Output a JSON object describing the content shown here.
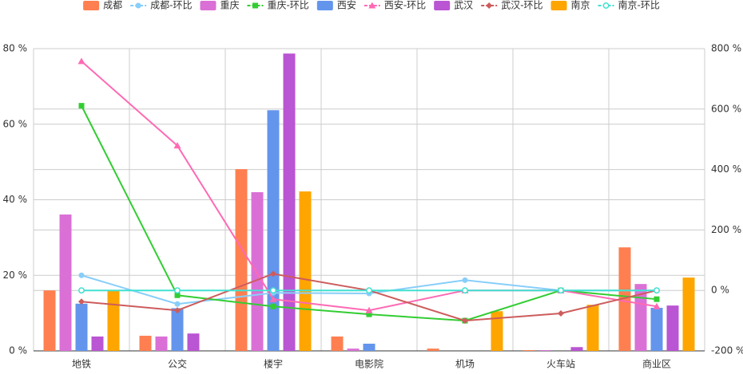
{
  "chart_data": {
    "type": "bar",
    "categories": [
      "地铁",
      "公交",
      "楼宇",
      "电影院",
      "机场",
      "火车站",
      "商业区"
    ],
    "series": [
      {
        "name": "成都",
        "type": "bar",
        "color": "#ff7f50",
        "values": [
          16.0,
          4.0,
          48.1,
          3.8,
          0.6,
          0.2,
          27.4
        ]
      },
      {
        "name": "成都-环比",
        "type": "line",
        "axis": "y2",
        "marker": "circle",
        "color": "#87cefa",
        "values": [
          50,
          -45,
          -8,
          -10,
          34,
          0,
          0
        ]
      },
      {
        "name": "重庆",
        "type": "bar",
        "color": "#da70d6",
        "values": [
          36.1,
          3.8,
          42.0,
          0.6,
          0,
          0.2,
          17.7
        ]
      },
      {
        "name": "重庆-环比",
        "type": "line",
        "axis": "y2",
        "marker": "square",
        "color": "#32cd32",
        "values": [
          611,
          -16,
          -53,
          -79,
          -100,
          0,
          -29
        ]
      },
      {
        "name": "西安",
        "type": "bar",
        "color": "#6495ed",
        "values": [
          12.5,
          11.3,
          63.7,
          1.9,
          0,
          0,
          11.4
        ]
      },
      {
        "name": "西安-环比",
        "type": "line",
        "axis": "y2",
        "marker": "triangle",
        "color": "#ff69b4",
        "values": [
          758,
          479,
          -29,
          -66,
          0,
          0,
          -53
        ]
      },
      {
        "name": "武汉",
        "type": "bar",
        "color": "#ba55d3",
        "values": [
          3.8,
          4.6,
          78.7,
          0,
          0,
          1.0,
          12.0
        ]
      },
      {
        "name": "武汉-环比",
        "type": "line",
        "axis": "y2",
        "marker": "diamond",
        "color": "#cd5c5c",
        "values": [
          -37,
          -66,
          55,
          0,
          -100,
          -76,
          0
        ]
      },
      {
        "name": "南京",
        "type": "bar",
        "color": "#ffa500",
        "values": [
          16.0,
          0,
          42.2,
          0,
          10.5,
          12.2,
          19.4
        ]
      },
      {
        "name": "南京-环比",
        "type": "line",
        "axis": "y2",
        "marker": "hollow-circle",
        "color": "#40e0d0",
        "values": [
          0,
          0,
          0,
          0,
          0,
          0,
          0
        ]
      }
    ],
    "ylim": [
      0,
      80
    ],
    "yticks": [
      {
        "value": 0,
        "label": "0 %"
      },
      {
        "value": 20,
        "label": "20 %"
      },
      {
        "value": 40,
        "label": "40 %"
      },
      {
        "value": 60,
        "label": "60 %"
      },
      {
        "value": 80,
        "label": "80 %"
      }
    ],
    "y2lim": [
      -200,
      800
    ],
    "y2ticks": [
      {
        "value": -200,
        "label": "-200 %"
      },
      {
        "value": 0,
        "label": "0 %"
      },
      {
        "value": 200,
        "label": "200 %"
      },
      {
        "value": 400,
        "label": "400 %"
      },
      {
        "value": 600,
        "label": "600 %"
      },
      {
        "value": 800,
        "label": "800 %"
      }
    ],
    "grid": true
  }
}
